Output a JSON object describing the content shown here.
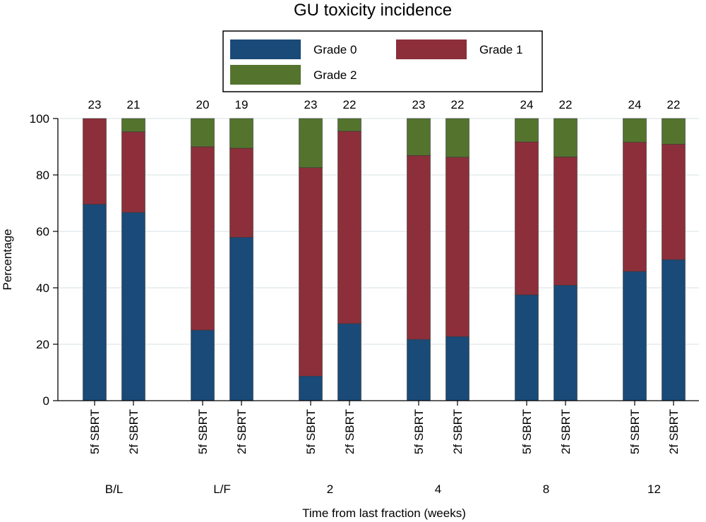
{
  "chart_data": {
    "type": "bar",
    "stacked": true,
    "title": "GU toxicity incidence",
    "xlabel": "Time from last fraction (weeks)",
    "ylabel": "Percentage",
    "ylim": [
      0,
      100
    ],
    "yticks": [
      "0",
      "20",
      "40",
      "60",
      "80",
      "100"
    ],
    "grid": true,
    "legend_position": "top",
    "colors": {
      "Grade 0": "#1a4a78",
      "Grade 1": "#8c2f3a",
      "Grade 2": "#54742e"
    },
    "groups": [
      {
        "label": "B/L",
        "bars": [
          {
            "arm": "5f SBRT",
            "n": "23",
            "values": [
              69.6,
              30.4,
              0
            ]
          },
          {
            "arm": "2f SBRT",
            "n": "21",
            "values": [
              66.7,
              28.6,
              4.7
            ]
          }
        ]
      },
      {
        "label": "L/F",
        "bars": [
          {
            "arm": "5f SBRT",
            "n": "20",
            "values": [
              25,
              65,
              10
            ]
          },
          {
            "arm": "2f SBRT",
            "n": "19",
            "values": [
              57.9,
              31.6,
              10.5
            ]
          }
        ]
      },
      {
        "label": "2",
        "bars": [
          {
            "arm": "5f SBRT",
            "n": "23",
            "values": [
              8.7,
              73.9,
              17.4
            ]
          },
          {
            "arm": "2f SBRT",
            "n": "22",
            "values": [
              27.3,
              68.2,
              4.5
            ]
          }
        ]
      },
      {
        "label": "4",
        "bars": [
          {
            "arm": "5f SBRT",
            "n": "23",
            "values": [
              21.7,
              65.2,
              13.1
            ]
          },
          {
            "arm": "2f SBRT",
            "n": "22",
            "values": [
              22.7,
              63.6,
              13.7
            ]
          }
        ]
      },
      {
        "label": "8",
        "bars": [
          {
            "arm": "5f SBRT",
            "n": "24",
            "values": [
              37.5,
              54.2,
              8.3
            ]
          },
          {
            "arm": "2f SBRT",
            "n": "22",
            "values": [
              40.9,
              45.5,
              13.6
            ]
          }
        ]
      },
      {
        "label": "12",
        "bars": [
          {
            "arm": "5f SBRT",
            "n": "24",
            "values": [
              45.8,
              45.8,
              8.4
            ]
          },
          {
            "arm": "2f SBRT",
            "n": "22",
            "values": [
              50,
              40.9,
              9.1
            ]
          }
        ]
      }
    ],
    "series": [
      {
        "name": "Grade 0"
      },
      {
        "name": "Grade 1"
      },
      {
        "name": "Grade 2"
      }
    ]
  }
}
